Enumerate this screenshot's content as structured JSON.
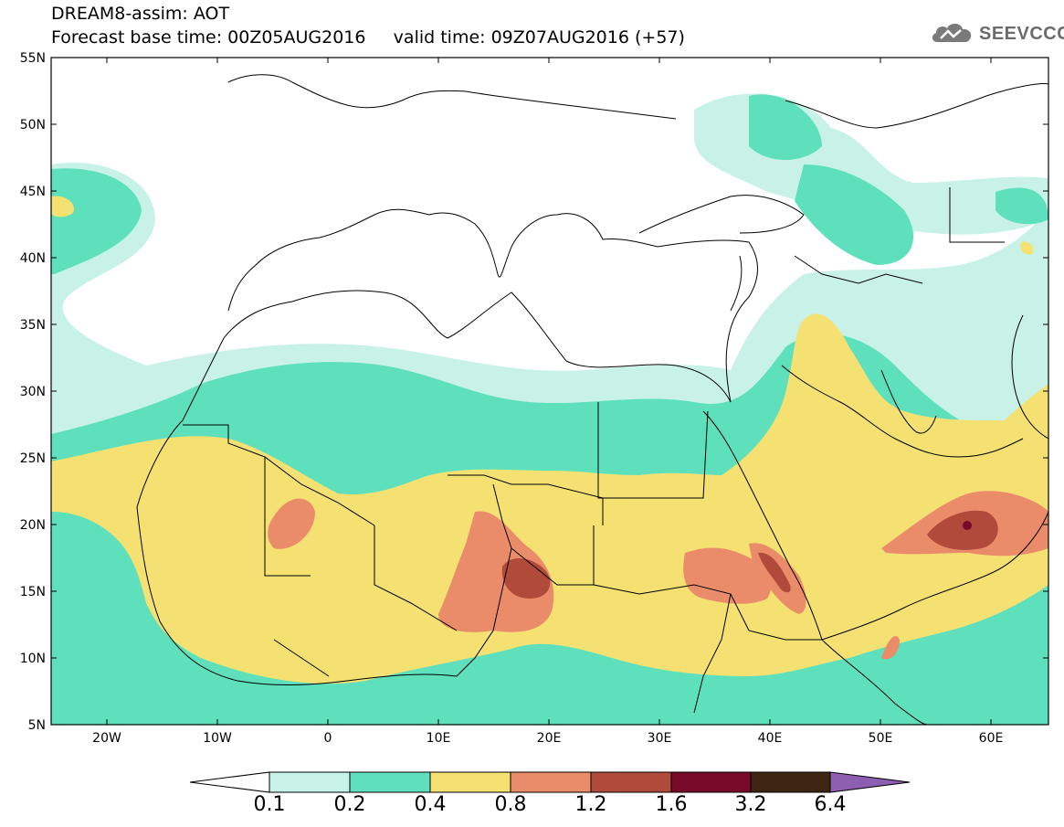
{
  "header": {
    "title_line1": "DREAM8-assim: AOT",
    "title_line2": "Forecast base time: 00Z05AUG2016     valid time: 09Z07AUG2016 (+57)"
  },
  "logo": {
    "text": "SEEVCCC",
    "icon": "cloud-icon"
  },
  "axes": {
    "lat_labels": [
      "55N",
      "50N",
      "45N",
      "40N",
      "35N",
      "30N",
      "25N",
      "20N",
      "15N",
      "10N",
      "5N"
    ],
    "lon_labels": [
      "20W",
      "10W",
      "0",
      "10E",
      "20E",
      "30E",
      "40E",
      "50E",
      "60E"
    ]
  },
  "colorbar": {
    "labels": [
      "0.1",
      "0.2",
      "0.4",
      "0.8",
      "1.2",
      "1.6",
      "3.2",
      "6.4"
    ],
    "colors": [
      "#ffffff",
      "#c8f2e8",
      "#5ee0bd",
      "#f5e172",
      "#ea8c6a",
      "#b04a3a",
      "#7a0a2a",
      "#3e2412",
      "#8c5fb0"
    ]
  },
  "chart_data": {
    "type": "heatmap",
    "title": "DREAM8-assim: AOT",
    "variable": "AOT",
    "lat_range": [
      5,
      55
    ],
    "lon_range": [
      -25,
      65
    ],
    "levels": [
      0.1,
      0.2,
      0.4,
      0.8,
      1.2,
      1.6,
      3.2,
      6.4
    ],
    "level_colors": [
      "#c8f2e8",
      "#5ee0bd",
      "#f5e172",
      "#ea8c6a",
      "#b04a3a",
      "#7a0a2a",
      "#3e2412"
    ],
    "max_region": "Arabian Peninsula near 20N 57E"
  }
}
